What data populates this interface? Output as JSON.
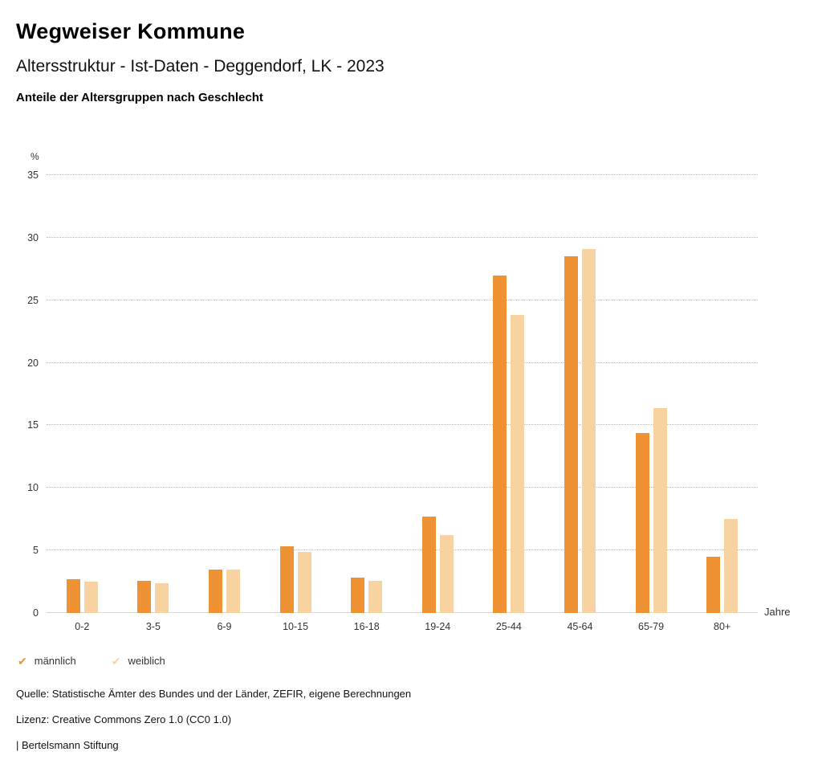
{
  "header": {
    "title": "Wegweiser Kommune",
    "subtitle": "Altersstruktur - Ist-Daten - Deggendorf, LK - 2023",
    "chart_heading": "Anteile der Altersgruppen nach Geschlecht"
  },
  "chart_data": {
    "type": "bar",
    "categories": [
      "0-2",
      "3-5",
      "6-9",
      "10-15",
      "16-18",
      "19-24",
      "25-44",
      "45-64",
      "65-79",
      "80+"
    ],
    "series": [
      {
        "name": "männlich",
        "color": "#ef9234",
        "values": [
          2.7,
          2.6,
          3.5,
          5.3,
          2.8,
          7.7,
          27.0,
          28.5,
          14.4,
          4.5
        ]
      },
      {
        "name": "weiblich",
        "color": "#f8d3a2",
        "values": [
          2.5,
          2.4,
          3.5,
          4.9,
          2.6,
          6.2,
          23.8,
          29.1,
          16.4,
          7.5
        ]
      }
    ],
    "title": "Anteile der Altersgruppen nach Geschlecht",
    "xlabel": "Jahre",
    "ylabel": "%",
    "ylim": [
      0,
      35
    ],
    "yticks": [
      0,
      5,
      10,
      15,
      20,
      25,
      30,
      35
    ],
    "grid": true,
    "legend_position": "bottom",
    "legend_marker": "checkmark"
  },
  "footer": {
    "source": "Quelle: Statistische Ämter des Bundes und der Länder, ZEFIR, eigene Berechnungen",
    "license": "Lizenz: Creative Commons Zero 1.0 (CC0 1.0)",
    "branding": "| Bertelsmann Stiftung"
  }
}
